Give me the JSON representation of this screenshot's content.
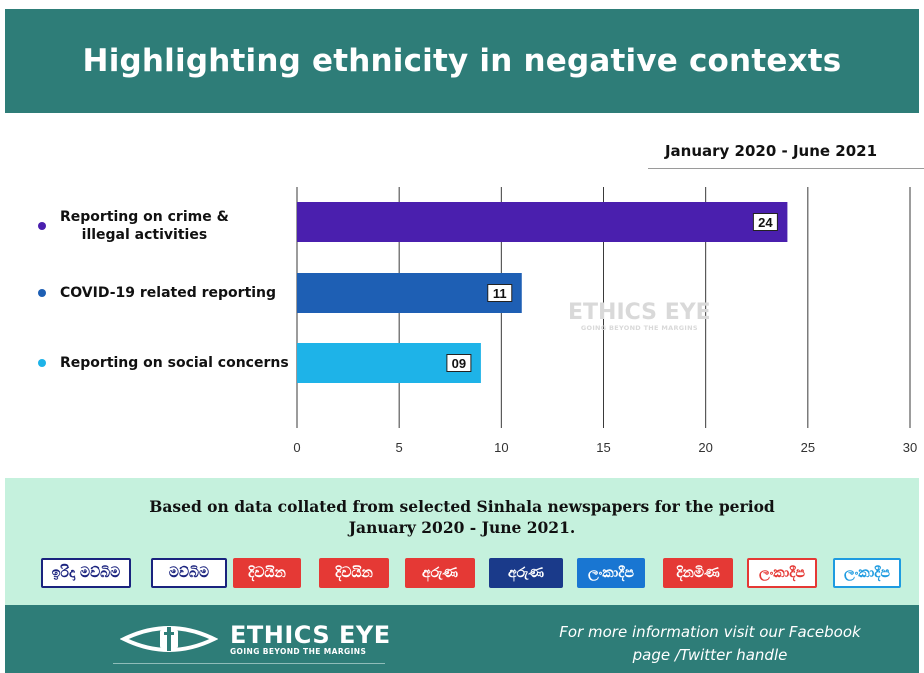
{
  "title": "Highlighting ethnicity in negative contexts",
  "period": "January 2020 - June 2021",
  "chart_data": {
    "type": "bar",
    "orientation": "horizontal",
    "categories": [
      "Reporting on crime & illegal activities",
      "COVID-19 related reporting",
      "Reporting on social concerns"
    ],
    "category_lines": [
      [
        "Reporting on crime &",
        "illegal activities"
      ],
      [
        "COVID-19 related reporting"
      ],
      [
        "Reporting on social concerns"
      ]
    ],
    "values": [
      24,
      11,
      9
    ],
    "data_labels": [
      "24",
      "11",
      "09"
    ],
    "colors": [
      "#4a1fae",
      "#1e5fb4",
      "#1eb3e8"
    ],
    "xlim": [
      0,
      30
    ],
    "xticks": [
      "0",
      "5",
      "10",
      "15",
      "20",
      "25",
      "30"
    ],
    "grid": true,
    "xlabel": "",
    "ylabel": ""
  },
  "watermark": {
    "name": "ETHICS EYE",
    "tagline": "GOING BEYOND THE MARGINS"
  },
  "info": {
    "line1": "Based on data collated from selected Sinhala newspapers for the period",
    "line2": "January 2020 - June 2021."
  },
  "newspapers": [
    {
      "name": "ඉරිදා මව්බිම",
      "bg": "#ffffff",
      "fg": "#1a237e",
      "border": "#1a237e"
    },
    {
      "name": "මව්බිම",
      "bg": "#ffffff",
      "fg": "#1a237e",
      "border": "#1a237e"
    },
    {
      "name": "දිවයින",
      "bg": "#e53935",
      "fg": "#ffffff",
      "border": "#e53935"
    },
    {
      "name": "දිවයින",
      "bg": "#e53935",
      "fg": "#ffffff",
      "border": "#e53935"
    },
    {
      "name": "අරුණ",
      "bg": "#e53935",
      "fg": "#ffffff",
      "border": "#e53935"
    },
    {
      "name": "අරුණ",
      "bg": "#1a3a8a",
      "fg": "#ffffff",
      "border": "#1a3a8a"
    },
    {
      "name": "ලංකාදීප",
      "bg": "#1976d2",
      "fg": "#ffffff",
      "border": "#1976d2"
    },
    {
      "name": "දිනමිණ",
      "bg": "#e53935",
      "fg": "#ffffff",
      "border": "#e53935"
    },
    {
      "name": "ලංකාදීප",
      "bg": "#ffffff",
      "fg": "#e53935",
      "border": "#e53935"
    },
    {
      "name": "ලංකාදීප",
      "bg": "#ffffff",
      "fg": "#1e9be0",
      "border": "#1e9be0"
    }
  ],
  "footer": {
    "brand_name": "ETHICS EYE",
    "brand_tagline": "GOING BEYOND THE MARGINS",
    "info_line1": "For more information visit our Facebook",
    "info_line2": "page /Twitter handle"
  }
}
